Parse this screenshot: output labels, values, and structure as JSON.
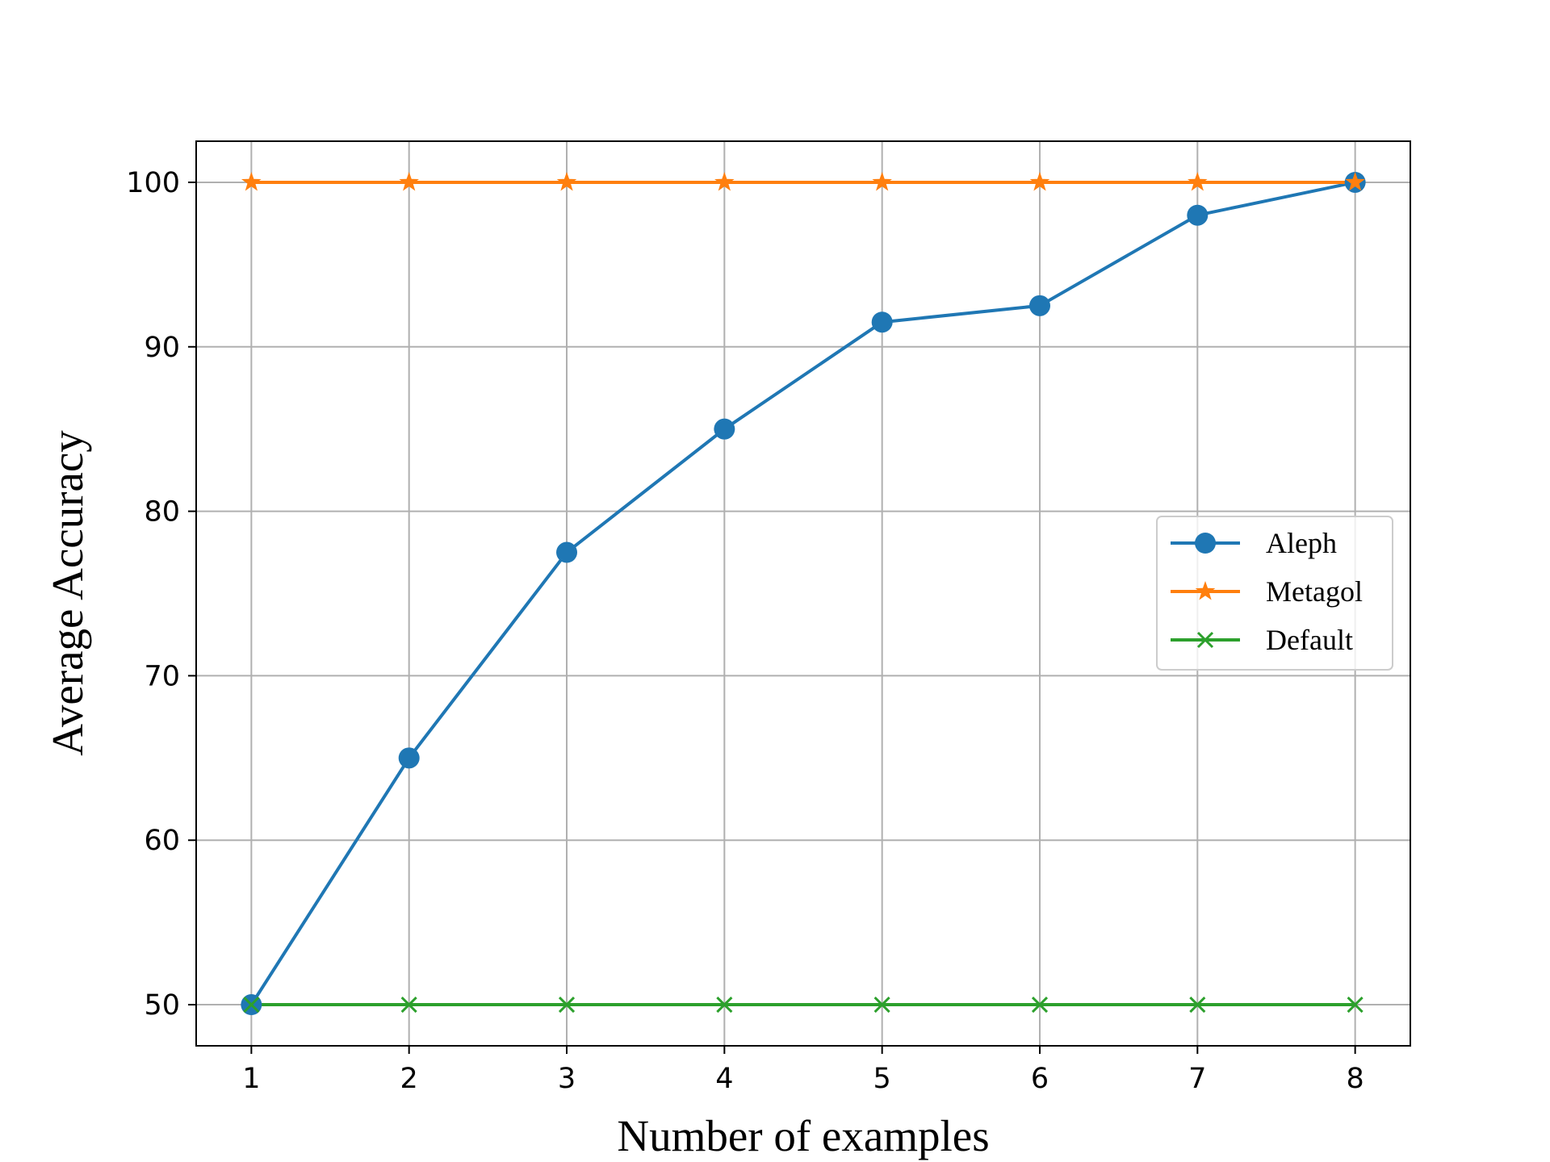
{
  "chart_data": {
    "type": "line",
    "xlabel": "Number of examples",
    "ylabel": "Average Accuracy",
    "x": [
      1,
      2,
      3,
      4,
      5,
      6,
      7,
      8
    ],
    "xlim": [
      0.65,
      8.35
    ],
    "ylim": [
      47.5,
      102.5
    ],
    "xticks": [
      1,
      2,
      3,
      4,
      5,
      6,
      7,
      8
    ],
    "yticks": [
      50,
      60,
      70,
      80,
      90,
      100
    ],
    "grid": true,
    "legend_position": "center-right",
    "series": [
      {
        "name": "Aleph",
        "values": [
          50,
          65,
          77.5,
          85,
          91.5,
          92.5,
          98,
          100
        ],
        "color": "#1f77b4",
        "marker": "circle"
      },
      {
        "name": "Metagol",
        "values": [
          100,
          100,
          100,
          100,
          100,
          100,
          100,
          100
        ],
        "color": "#ff7f0e",
        "marker": "star"
      },
      {
        "name": "Default",
        "values": [
          50,
          50,
          50,
          50,
          50,
          50,
          50,
          50
        ],
        "color": "#2ca02c",
        "marker": "x"
      }
    ]
  }
}
